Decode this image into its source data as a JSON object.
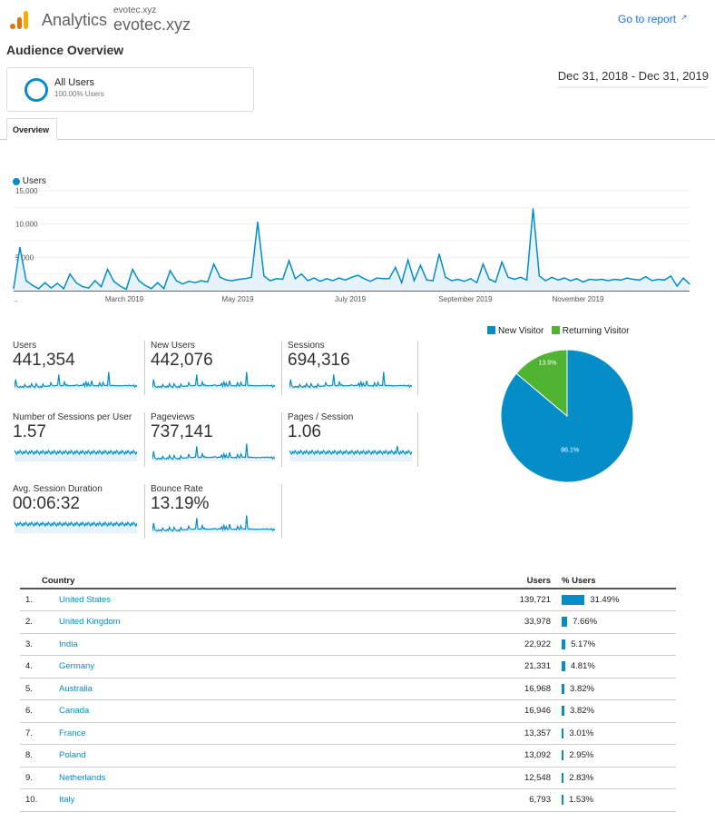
{
  "header": {
    "app_name": "Analytics",
    "property_small": "evotec.xyz",
    "property_name": "evotec.xyz",
    "go_to_report": "Go to report",
    "external_icon": "external-link-icon"
  },
  "page": {
    "title": "Audience Overview",
    "segment_name": "All Users",
    "segment_percent": "100.00% Users",
    "date_range": "Dec 31, 2018 - Dec 31, 2019",
    "tab": "Overview"
  },
  "colors": {
    "primary": "#058dc7",
    "returning": "#50b432",
    "link": "#1a73e8"
  },
  "chart_data": [
    {
      "type": "line",
      "series": [
        {
          "name": "Users",
          "values": [
            300,
            6500,
            1500,
            800,
            300,
            1200,
            400,
            1100,
            300,
            2500,
            1200,
            600,
            400,
            1500,
            600,
            3200,
            1400,
            700,
            200,
            3200,
            1500,
            800,
            300,
            1200,
            300,
            3000,
            1500,
            1000,
            1400,
            1200,
            1500,
            1300,
            4000,
            2000,
            1600,
            1500,
            1700,
            1800,
            2000,
            10300,
            2200,
            1500,
            1800,
            1700,
            4500,
            1800,
            2500,
            1500,
            1900,
            1400,
            1800,
            1500,
            1900,
            1600,
            2000,
            2300,
            1800,
            1400,
            1900,
            1800,
            1800,
            3500,
            1200,
            4600,
            1500,
            3800,
            1600,
            1500,
            5500,
            2000,
            1500,
            1700,
            1400,
            1800,
            1200,
            4000,
            1700,
            1300,
            4300,
            2000,
            1700,
            2000,
            1600,
            12300,
            2200,
            1500,
            2000,
            1600,
            1900,
            1500,
            1800,
            1300,
            1700,
            1600,
            1700,
            1500,
            1700,
            1600,
            1900,
            1700,
            1600,
            2100,
            1500,
            1700,
            1600,
            2200,
            700,
            1900,
            1000
          ]
        }
      ],
      "x_range": [
        "Dec 31, 2018",
        "Dec 31, 2019"
      ],
      "x_tick_labels": [
        "..",
        "March 2019",
        "May 2019",
        "July 2019",
        "September 2019",
        "November 2019"
      ],
      "y_tick_labels": [
        "15,000",
        "10,000",
        "5,000"
      ],
      "ylim": [
        0,
        15000
      ],
      "grid": true,
      "legend": "top-left"
    },
    {
      "type": "pie",
      "slices": [
        {
          "name": "New Visitor",
          "value": 86.1,
          "label": "86.1%"
        },
        {
          "name": "Returning Visitor",
          "value": 13.9,
          "label": "13.9%"
        }
      ],
      "legend": "top"
    }
  ],
  "metrics": [
    {
      "label": "Users",
      "value": "441,354"
    },
    {
      "label": "New Users",
      "value": "442,076"
    },
    {
      "label": "Sessions",
      "value": "694,316"
    },
    {
      "label": "Number of Sessions per User",
      "value": "1.57"
    },
    {
      "label": "Pageviews",
      "value": "737,141"
    },
    {
      "label": "Pages / Session",
      "value": "1.06"
    },
    {
      "label": "Avg. Session Duration",
      "value": "00:06:32"
    },
    {
      "label": "Bounce Rate",
      "value": "13.19%"
    }
  ],
  "table": {
    "headers": {
      "country": "Country",
      "users": "Users",
      "pct": "% Users"
    },
    "rows": [
      {
        "rank": "1.",
        "country": "United States",
        "users": "139,721",
        "pct": "31.49%",
        "share": 31.49
      },
      {
        "rank": "2.",
        "country": "United Kingdom",
        "users": "33,978",
        "pct": "7.66%",
        "share": 7.66
      },
      {
        "rank": "3.",
        "country": "India",
        "users": "22,922",
        "pct": "5.17%",
        "share": 5.17
      },
      {
        "rank": "4.",
        "country": "Germany",
        "users": "21,331",
        "pct": "4.81%",
        "share": 4.81
      },
      {
        "rank": "5.",
        "country": "Australia",
        "users": "16,968",
        "pct": "3.82%",
        "share": 3.82
      },
      {
        "rank": "6.",
        "country": "Canada",
        "users": "16,946",
        "pct": "3.82%",
        "share": 3.82
      },
      {
        "rank": "7.",
        "country": "France",
        "users": "13,357",
        "pct": "3.01%",
        "share": 3.01
      },
      {
        "rank": "8.",
        "country": "Poland",
        "users": "13,092",
        "pct": "2.95%",
        "share": 2.95
      },
      {
        "rank": "9.",
        "country": "Netherlands",
        "users": "12,548",
        "pct": "2.83%",
        "share": 2.83
      },
      {
        "rank": "10.",
        "country": "Italy",
        "users": "6,793",
        "pct": "1.53%",
        "share": 1.53
      }
    ]
  }
}
